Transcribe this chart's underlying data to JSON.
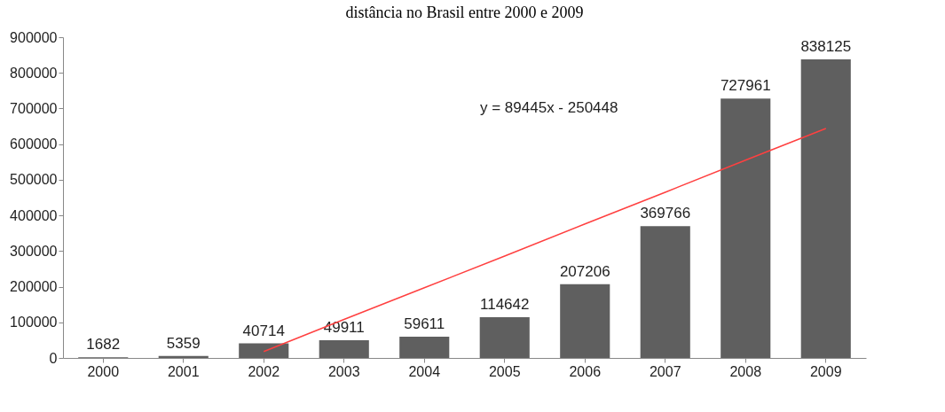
{
  "chart_data": {
    "type": "bar",
    "title": "distância no Brasil entre 2000 e 2009",
    "categories": [
      "2000",
      "2001",
      "2002",
      "2003",
      "2004",
      "2005",
      "2006",
      "2007",
      "2008",
      "2009"
    ],
    "series": [
      {
        "color": "#5f5f5f",
        "values": [
          1682,
          5359,
          40714,
          49911,
          59611,
          114642,
          207206,
          369766,
          727961,
          838125
        ],
        "value_labels": [
          "1682",
          "5359",
          "40714",
          "49911",
          "59611",
          "114642",
          "207206",
          "369766",
          "727961",
          "838125"
        ]
      },
      {
        "type": "line",
        "color": "#ff4040",
        "values": [
          null,
          null,
          18000,
          108000,
          197000,
          286000,
          376000,
          465000,
          555000,
          644000
        ]
      }
    ],
    "annotations": [
      "y = 89445x - 250448"
    ],
    "ylim": [
      0,
      900000
    ],
    "yticks": [
      0,
      100000,
      200000,
      300000,
      400000,
      500000,
      600000,
      700000,
      800000,
      900000
    ],
    "grid": false
  }
}
